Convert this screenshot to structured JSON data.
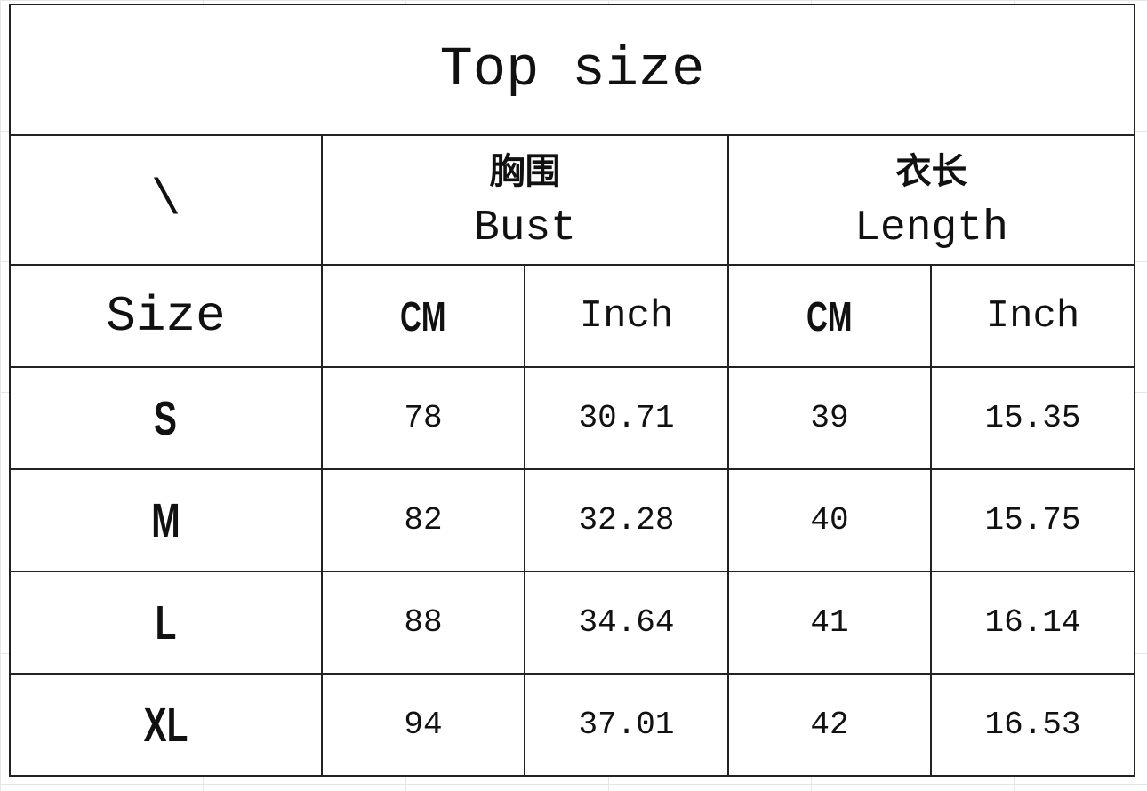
{
  "title": "Top size",
  "corner": "\\",
  "groups": [
    {
      "cn": "胸围",
      "en": "Bust"
    },
    {
      "cn": "衣长",
      "en": "Length"
    }
  ],
  "subheader": {
    "size": "Size",
    "cm": "CM",
    "inch": "Inch"
  },
  "rows": [
    {
      "size": "S",
      "bust_cm": "78",
      "bust_inch": "30.71",
      "length_cm": "39",
      "length_inch": "15.35"
    },
    {
      "size": "M",
      "bust_cm": "82",
      "bust_inch": "32.28",
      "length_cm": "40",
      "length_inch": "15.75"
    },
    {
      "size": "L",
      "bust_cm": "88",
      "bust_inch": "34.64",
      "length_cm": "41",
      "length_inch": "16.14"
    },
    {
      "size": "XL",
      "bust_cm": "94",
      "bust_inch": "37.01",
      "length_cm": "42",
      "length_inch": "16.53"
    }
  ]
}
